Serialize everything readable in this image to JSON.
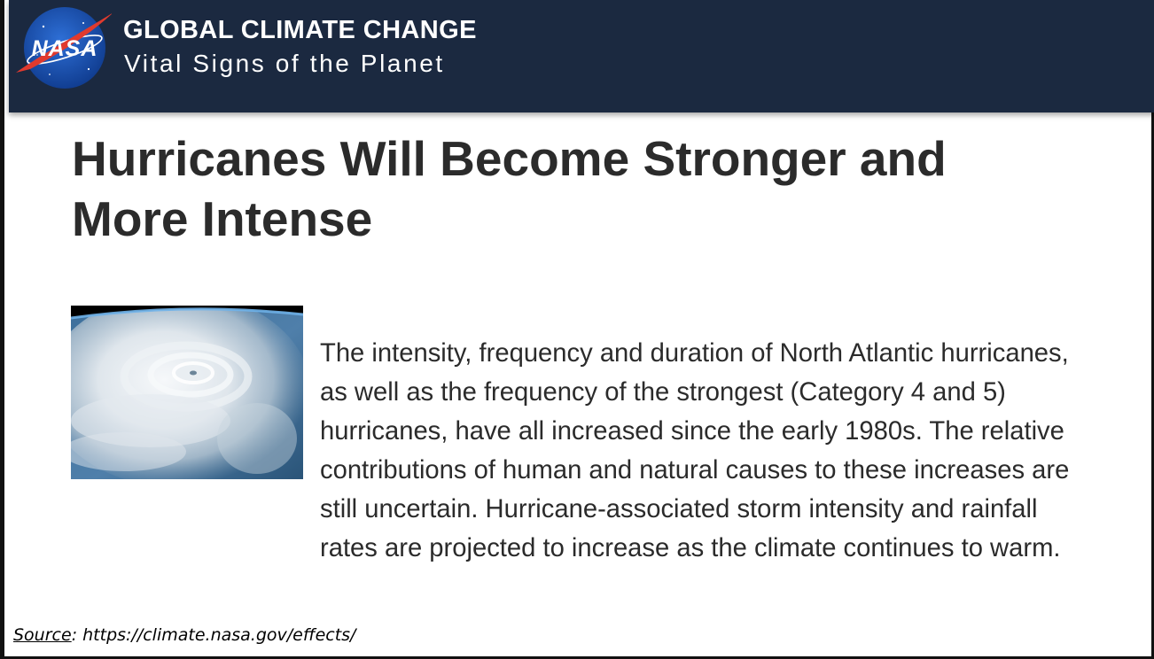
{
  "header": {
    "logo": {
      "icon": "nasa-meatball-logo",
      "text": "NASA",
      "colors": {
        "circle": "#1f56b3",
        "chevron": "#e03a2e",
        "text": "#ffffff"
      }
    },
    "title": "GLOBAL CLIMATE CHANGE",
    "subtitle": "Vital Signs of the Planet",
    "background_color": "#1b2940"
  },
  "article": {
    "headline": "Hurricanes Will Become Stronger and More Intense",
    "image": {
      "icon": "hurricane-satellite-photo"
    },
    "body": "The intensity, frequency and duration of North Atlantic hurricanes, as well as the frequency of the strongest (Category 4 and 5) hurricanes, have all increased since the early 1980s. The relative contributions of human and natural causes to these increases are still uncertain. Hurricane-associated storm intensity and rainfall rates are projected to increase as the climate continues to warm."
  },
  "footer": {
    "source_label": "Source",
    "source_url": ": https://climate.nasa.gov/effects/"
  }
}
